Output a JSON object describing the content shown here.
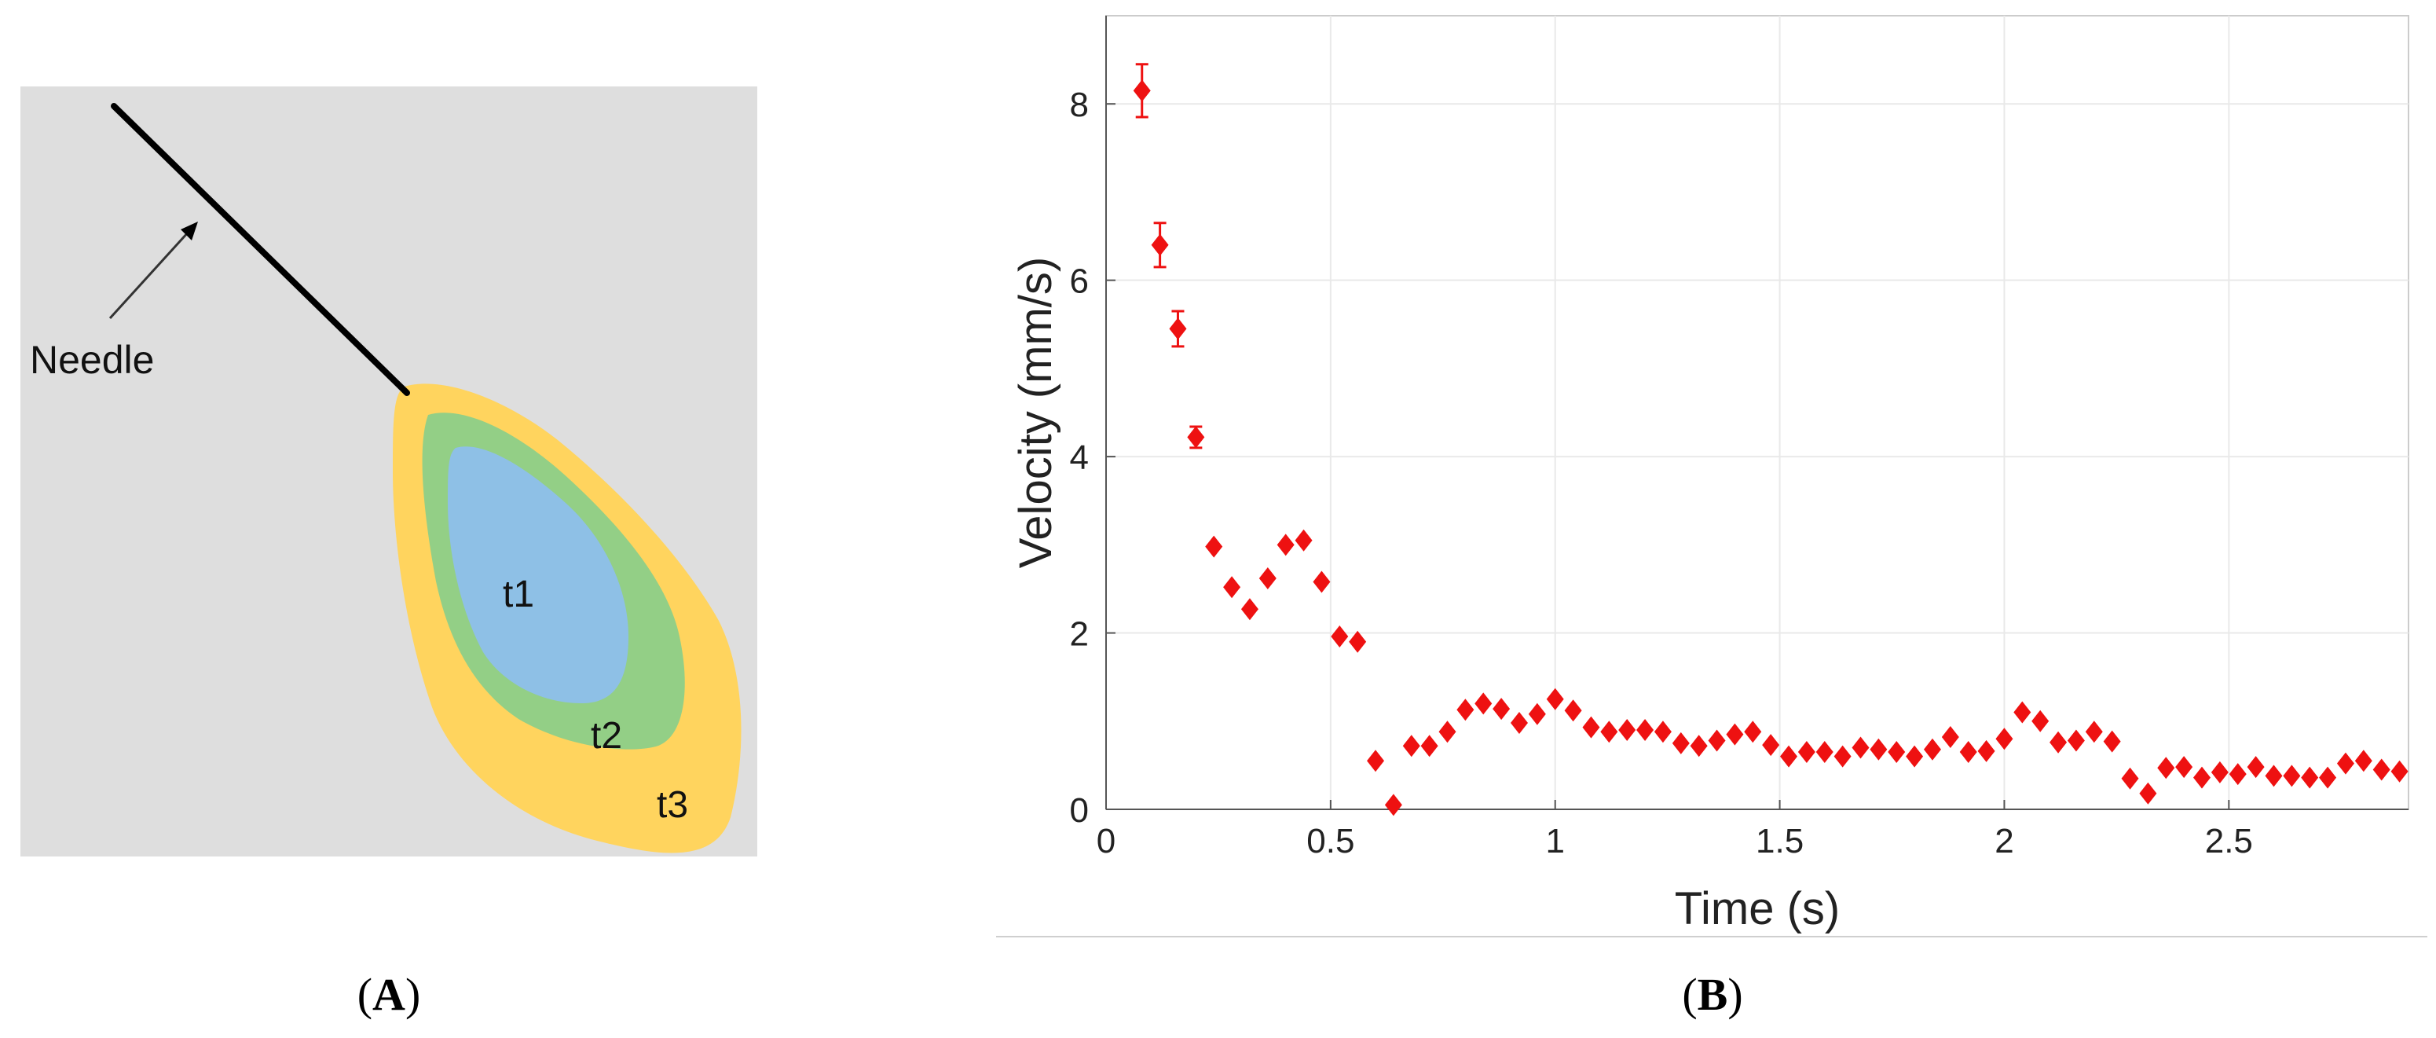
{
  "panel_a": {
    "label_open": "(",
    "label_letter": "A",
    "label_close": ")",
    "needle_label": "Needle",
    "region_labels": [
      "t1",
      "t2",
      "t3"
    ],
    "colors": {
      "background": "#dedede",
      "needle": "#000000",
      "t1": "#8ec0e6",
      "t2": "#93cf86",
      "t3": "#ffd45e"
    }
  },
  "panel_b": {
    "label_open": "(",
    "label_letter": "B",
    "label_close": ")"
  },
  "chart_data": {
    "type": "scatter",
    "title": "",
    "xlabel": "Time (s)",
    "ylabel": "Velocity (mm/s)",
    "xlim": [
      0,
      2.9
    ],
    "ylim": [
      0,
      9
    ],
    "xticks": [
      0,
      0.5,
      1,
      1.5,
      2,
      2.5
    ],
    "xtick_labels": [
      "0",
      "0.5",
      "1",
      "1.5",
      "2",
      "2.5"
    ],
    "yticks": [
      0,
      2,
      4,
      6,
      8
    ],
    "ytick_labels": [
      "0",
      "2",
      "4",
      "6",
      "8"
    ],
    "grid": true,
    "marker": "diamond",
    "color": "#ee1111",
    "x": [
      0.08,
      0.12,
      0.16,
      0.2,
      0.24,
      0.28,
      0.32,
      0.36,
      0.4,
      0.44,
      0.48,
      0.52,
      0.56,
      0.6,
      0.64,
      0.68,
      0.72,
      0.76,
      0.8,
      0.84,
      0.88,
      0.92,
      0.96,
      1.0,
      1.04,
      1.08,
      1.12,
      1.16,
      1.2,
      1.24,
      1.28,
      1.32,
      1.36,
      1.4,
      1.44,
      1.48,
      1.52,
      1.56,
      1.6,
      1.64,
      1.68,
      1.72,
      1.76,
      1.8,
      1.84,
      1.88,
      1.92,
      1.96,
      2.0,
      2.04,
      2.08,
      2.12,
      2.16,
      2.2,
      2.24,
      2.28,
      2.32,
      2.36,
      2.4,
      2.44,
      2.48,
      2.52,
      2.56,
      2.6,
      2.64,
      2.68,
      2.72,
      2.76,
      2.8,
      2.84,
      2.88
    ],
    "y": [
      8.15,
      6.4,
      5.45,
      4.22,
      2.98,
      2.52,
      2.27,
      2.62,
      3.0,
      3.05,
      2.58,
      1.96,
      1.9,
      0.55,
      0.05,
      0.72,
      0.72,
      0.88,
      1.13,
      1.2,
      1.14,
      0.98,
      1.08,
      1.25,
      1.12,
      0.93,
      0.88,
      0.9,
      0.9,
      0.88,
      0.75,
      0.72,
      0.78,
      0.85,
      0.88,
      0.73,
      0.6,
      0.65,
      0.65,
      0.6,
      0.7,
      0.68,
      0.65,
      0.6,
      0.68,
      0.82,
      0.65,
      0.66,
      0.8,
      1.1,
      1.0,
      0.76,
      0.78,
      0.88,
      0.77,
      0.35,
      0.18,
      0.47,
      0.48,
      0.36,
      0.42,
      0.4,
      0.48,
      0.38,
      0.38,
      0.36,
      0.36,
      0.52,
      0.55,
      0.45,
      0.43
    ],
    "error": [
      0.3,
      0.25,
      0.2,
      0.12,
      0,
      0,
      0,
      0,
      0,
      0,
      0,
      0,
      0,
      0,
      0,
      0,
      0,
      0,
      0,
      0,
      0,
      0,
      0,
      0,
      0,
      0,
      0,
      0,
      0,
      0,
      0,
      0,
      0,
      0,
      0,
      0,
      0,
      0,
      0,
      0,
      0,
      0,
      0,
      0,
      0,
      0,
      0,
      0,
      0,
      0,
      0,
      0,
      0,
      0,
      0,
      0,
      0,
      0,
      0,
      0,
      0,
      0,
      0,
      0,
      0,
      0,
      0,
      0,
      0,
      0,
      0
    ]
  }
}
